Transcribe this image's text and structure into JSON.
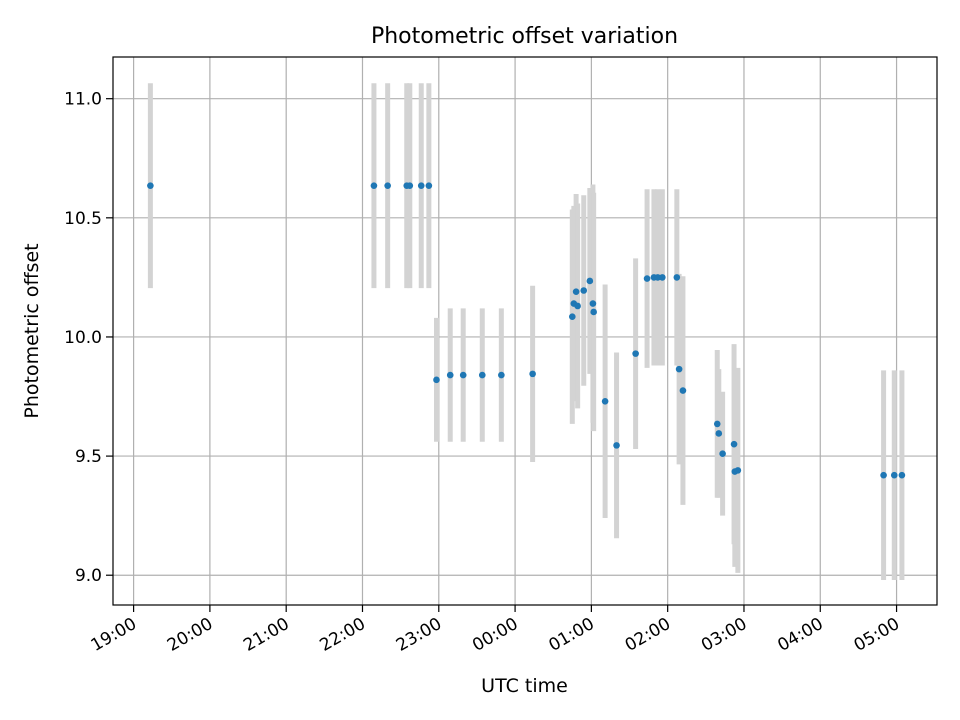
{
  "chart_data": {
    "type": "scatter",
    "title": "Photometric offset variation",
    "xlabel": "UTC time",
    "ylabel": "Photometric offset",
    "x_unit": "hours since 19:00 UTC",
    "xlim": [
      -0.27,
      10.53
    ],
    "ylim": [
      8.875,
      11.175
    ],
    "grid": true,
    "x_ticks": [
      {
        "value": 0,
        "label": "19:00"
      },
      {
        "value": 1,
        "label": "20:00"
      },
      {
        "value": 2,
        "label": "21:00"
      },
      {
        "value": 3,
        "label": "22:00"
      },
      {
        "value": 4,
        "label": "23:00"
      },
      {
        "value": 5,
        "label": "00:00"
      },
      {
        "value": 6,
        "label": "01:00"
      },
      {
        "value": 7,
        "label": "02:00"
      },
      {
        "value": 8,
        "label": "03:00"
      },
      {
        "value": 9,
        "label": "04:00"
      },
      {
        "value": 10,
        "label": "05:00"
      }
    ],
    "y_ticks": [
      {
        "value": 9.0,
        "label": "9.0"
      },
      {
        "value": 9.5,
        "label": "9.5"
      },
      {
        "value": 10.0,
        "label": "10.0"
      },
      {
        "value": 10.5,
        "label": "10.5"
      },
      {
        "value": 11.0,
        "label": "11.0"
      }
    ],
    "series": [
      {
        "name": "offset",
        "color": "#1f77b4",
        "errorbar_color": "#d3d3d3",
        "points": [
          {
            "x": 0.22,
            "y": 10.635,
            "err": 0.43
          },
          {
            "x": 3.15,
            "y": 10.635,
            "err": 0.43
          },
          {
            "x": 3.33,
            "y": 10.635,
            "err": 0.43
          },
          {
            "x": 3.58,
            "y": 10.635,
            "err": 0.43
          },
          {
            "x": 3.62,
            "y": 10.635,
            "err": 0.43
          },
          {
            "x": 3.77,
            "y": 10.635,
            "err": 0.43
          },
          {
            "x": 3.87,
            "y": 10.635,
            "err": 0.43
          },
          {
            "x": 3.97,
            "y": 9.82,
            "err": 0.26
          },
          {
            "x": 4.15,
            "y": 9.84,
            "err": 0.28
          },
          {
            "x": 4.32,
            "y": 9.84,
            "err": 0.28
          },
          {
            "x": 4.57,
            "y": 9.84,
            "err": 0.28
          },
          {
            "x": 4.82,
            "y": 9.84,
            "err": 0.28
          },
          {
            "x": 5.23,
            "y": 9.845,
            "err": 0.37
          },
          {
            "x": 5.75,
            "y": 10.085,
            "err": 0.45
          },
          {
            "x": 5.77,
            "y": 10.14,
            "err": 0.41
          },
          {
            "x": 5.8,
            "y": 10.19,
            "err": 0.41
          },
          {
            "x": 5.82,
            "y": 10.13,
            "err": 0.43
          },
          {
            "x": 5.9,
            "y": 10.195,
            "err": 0.4
          },
          {
            "x": 5.98,
            "y": 10.235,
            "err": 0.39
          },
          {
            "x": 6.02,
            "y": 10.14,
            "err": 0.5
          },
          {
            "x": 6.03,
            "y": 10.105,
            "err": 0.5
          },
          {
            "x": 6.18,
            "y": 9.73,
            "err": 0.49
          },
          {
            "x": 6.33,
            "y": 9.545,
            "err": 0.39
          },
          {
            "x": 6.58,
            "y": 9.93,
            "err": 0.4
          },
          {
            "x": 6.73,
            "y": 10.245,
            "err": 0.375
          },
          {
            "x": 6.82,
            "y": 10.25,
            "err": 0.37
          },
          {
            "x": 6.87,
            "y": 10.25,
            "err": 0.37
          },
          {
            "x": 6.93,
            "y": 10.25,
            "err": 0.37
          },
          {
            "x": 7.12,
            "y": 10.25,
            "err": 0.37
          },
          {
            "x": 7.15,
            "y": 9.865,
            "err": 0.4
          },
          {
            "x": 7.2,
            "y": 9.775,
            "err": 0.48
          },
          {
            "x": 7.65,
            "y": 9.635,
            "err": 0.31
          },
          {
            "x": 7.67,
            "y": 9.595,
            "err": 0.27
          },
          {
            "x": 7.72,
            "y": 9.51,
            "err": 0.26
          },
          {
            "x": 7.87,
            "y": 9.55,
            "err": 0.42
          },
          {
            "x": 7.88,
            "y": 9.435,
            "err": 0.4
          },
          {
            "x": 7.92,
            "y": 9.44,
            "err": 0.43
          },
          {
            "x": 9.83,
            "y": 9.42,
            "err": 0.44
          },
          {
            "x": 9.97,
            "y": 9.42,
            "err": 0.44
          },
          {
            "x": 10.07,
            "y": 9.42,
            "err": 0.44
          }
        ]
      }
    ]
  }
}
